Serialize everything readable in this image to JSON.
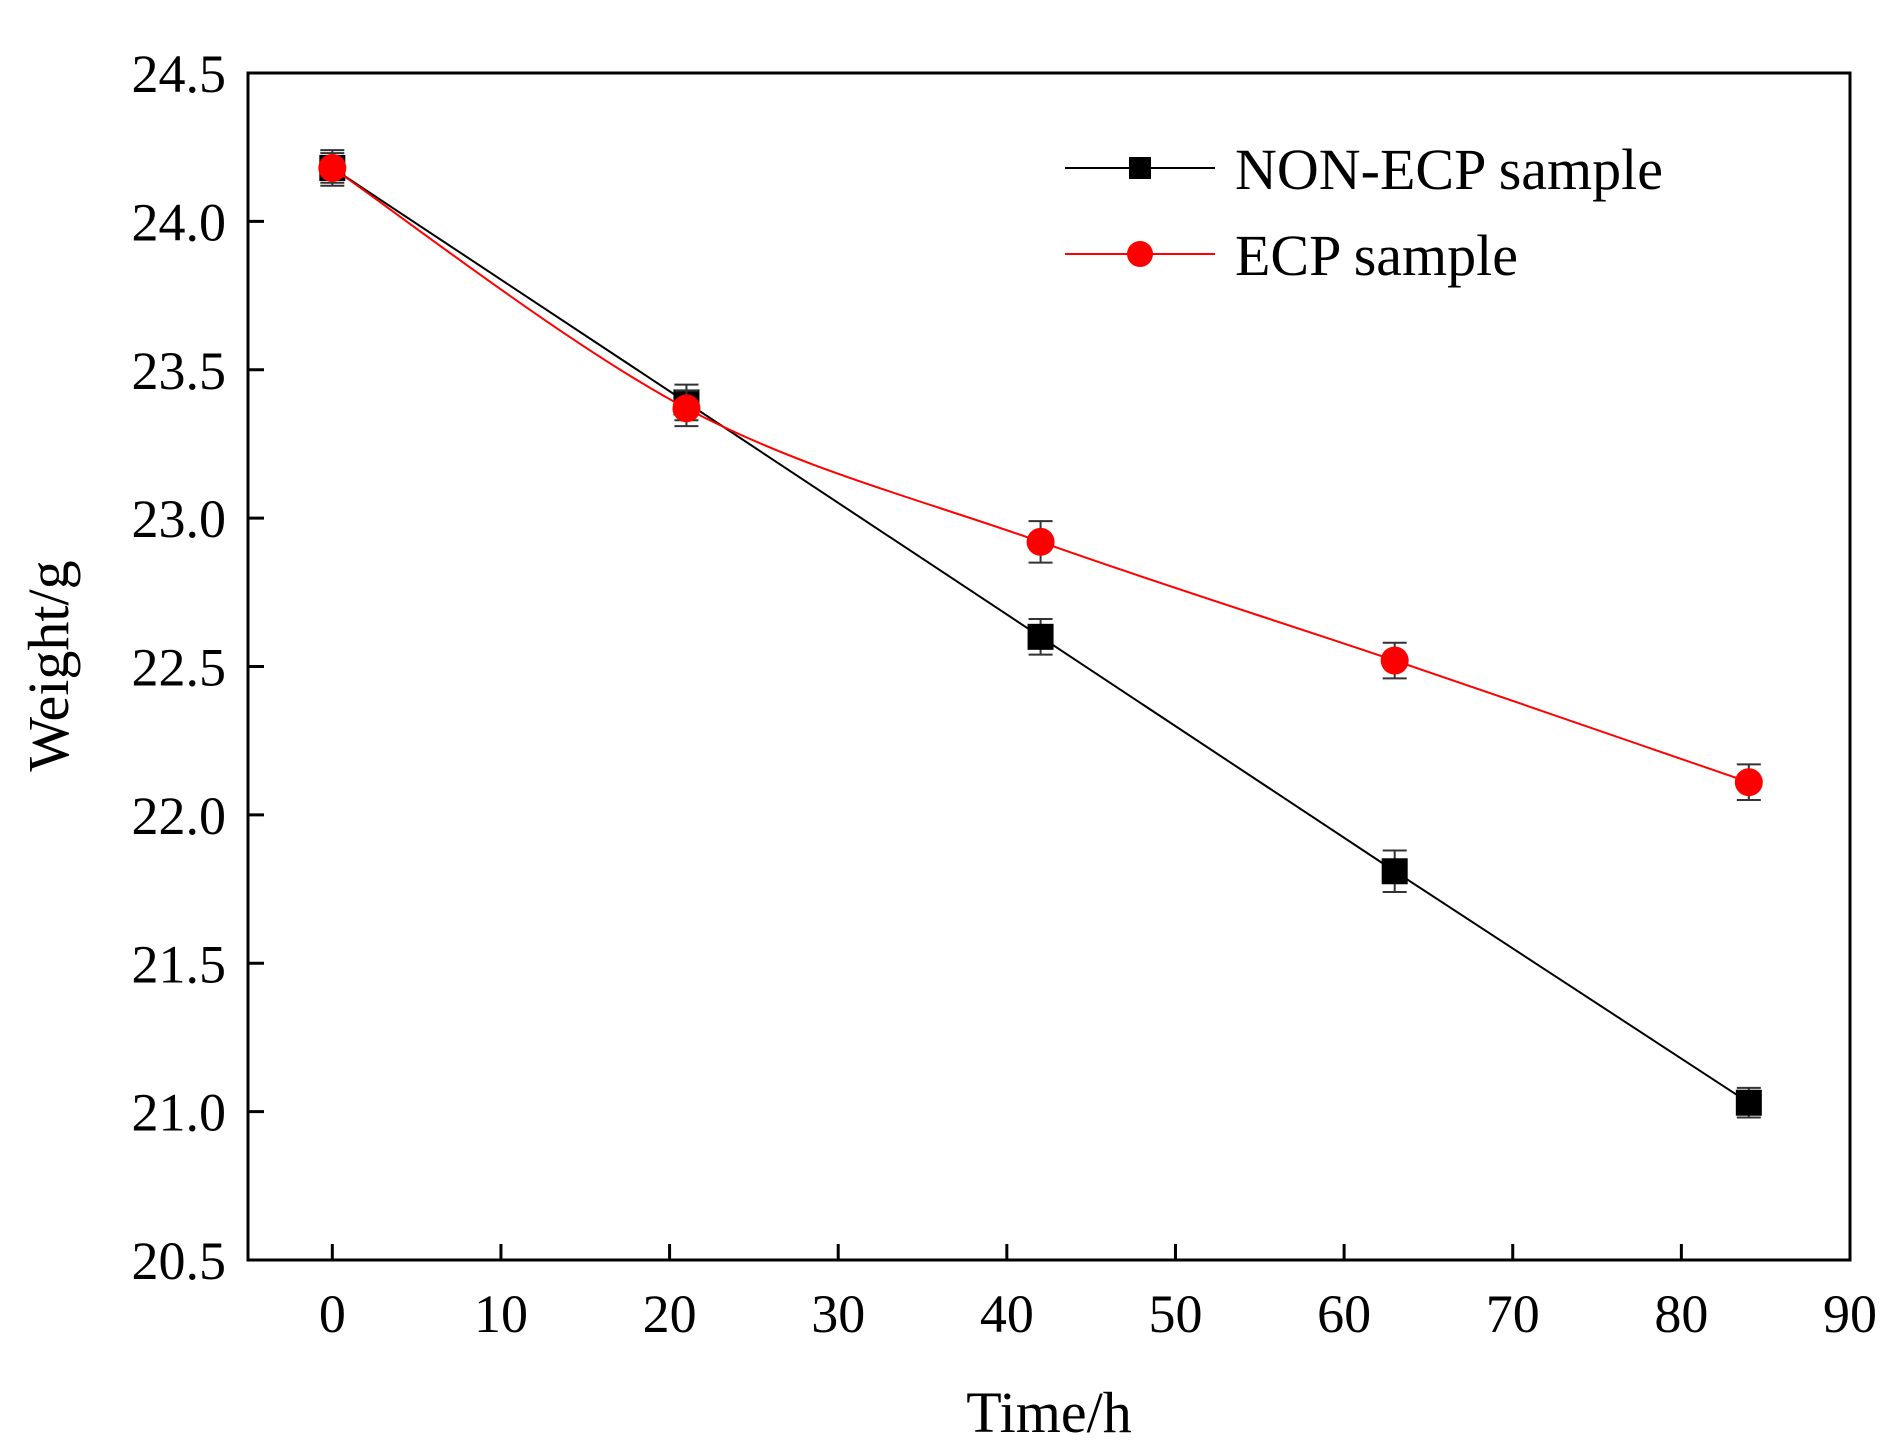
{
  "chart_data": {
    "type": "line",
    "title": "",
    "xlabel": "Time/h",
    "ylabel": "Weight/g",
    "xlim": [
      -5,
      90
    ],
    "ylim": [
      20.5,
      24.5
    ],
    "xticks": [
      0,
      10,
      20,
      30,
      40,
      50,
      60,
      70,
      80,
      90
    ],
    "xtick_labels": [
      "0",
      "10",
      "20",
      "30",
      "40",
      "50",
      "60",
      "70",
      "80",
      "90"
    ],
    "yticks": [
      20.5,
      21.0,
      21.5,
      22.0,
      22.5,
      23.0,
      23.5,
      24.0,
      24.5
    ],
    "ytick_labels": [
      "20.5",
      "21.0",
      "21.5",
      "22.0",
      "22.5",
      "23.0",
      "23.5",
      "24.0",
      "24.5"
    ],
    "grid": false,
    "legend_position": "top-right",
    "series": [
      {
        "name": "NON-ECP sample",
        "color": "#000000",
        "marker": "square",
        "x": [
          0,
          21,
          42,
          63,
          84
        ],
        "y": [
          24.18,
          23.39,
          22.6,
          21.81,
          21.03
        ],
        "error": [
          0.05,
          0.06,
          0.06,
          0.07,
          0.05
        ]
      },
      {
        "name": "ECP sample",
        "color": "#ff0000",
        "marker": "circle",
        "x": [
          0,
          21,
          42,
          63,
          84
        ],
        "y": [
          24.18,
          23.37,
          22.92,
          22.52,
          22.11
        ],
        "error": [
          0.06,
          0.06,
          0.07,
          0.06,
          0.06
        ]
      }
    ]
  }
}
